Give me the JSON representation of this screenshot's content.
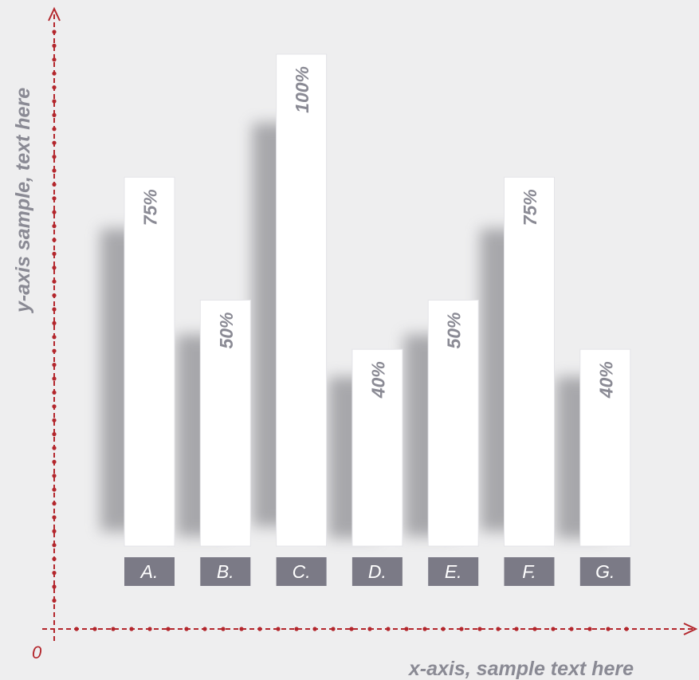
{
  "chart_data": {
    "type": "bar",
    "categories": [
      "A.",
      "B.",
      "C.",
      "D.",
      "E.",
      "F.",
      "G."
    ],
    "values": [
      75,
      50,
      100,
      40,
      50,
      75,
      40
    ],
    "data_labels": [
      "75%",
      "50%",
      "100%",
      "40%",
      "50%",
      "75%",
      "40%"
    ],
    "ylim": [
      0,
      100
    ],
    "xlabel": "x-axis, sample text here",
    "ylabel": "y-axis sample, text here",
    "origin_label": "0",
    "grid": false,
    "legend": "none"
  },
  "colors": {
    "background": "#eeeeef",
    "axis": "#b3262c",
    "bar": "#ffffff",
    "category_box": "#7b7a86",
    "category_text": "#ffffff",
    "label_text": "#8a8a94"
  }
}
